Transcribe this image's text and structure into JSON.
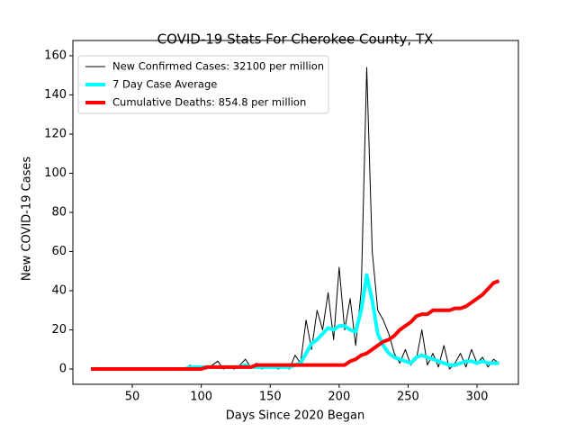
{
  "chart_data": {
    "type": "line",
    "title": "COVID-19 Stats For Cherokee County, TX",
    "xlabel": "Days Since 2020 Began",
    "ylabel": "New COVID-19 Cases",
    "legend": "upper left",
    "xlim": [
      6.9,
      330
    ],
    "ylim": [
      -7.8,
      167.8
    ],
    "xticks": [
      50,
      100,
      150,
      200,
      250,
      300
    ],
    "yticks": [
      0,
      20,
      40,
      60,
      80,
      100,
      120,
      140,
      160
    ],
    "x": [
      20,
      24,
      28,
      32,
      36,
      40,
      44,
      48,
      52,
      56,
      60,
      64,
      68,
      72,
      76,
      80,
      84,
      88,
      92,
      96,
      100,
      104,
      108,
      112,
      116,
      120,
      124,
      128,
      132,
      136,
      140,
      144,
      148,
      152,
      156,
      160,
      164,
      168,
      172,
      176,
      180,
      184,
      188,
      192,
      196,
      200,
      204,
      208,
      212,
      216,
      220,
      224,
      228,
      232,
      236,
      240,
      244,
      248,
      252,
      256,
      260,
      264,
      268,
      272,
      276,
      280,
      284,
      288,
      292,
      296,
      300,
      304,
      308,
      312,
      316
    ],
    "series": [
      {
        "name": "New Confirmed Cases: 32100 per million",
        "color": "#000000",
        "linewidth": 1,
        "values": [
          0,
          0,
          0,
          0,
          0,
          0,
          0,
          0,
          0,
          0,
          0,
          0,
          0,
          0,
          0,
          0,
          0,
          0,
          2,
          0,
          1,
          0,
          2,
          4,
          0,
          1,
          0,
          2,
          5,
          1,
          3,
          0,
          2,
          1,
          0,
          2,
          0,
          7,
          3,
          25,
          10,
          30,
          20,
          39,
          15,
          52,
          20,
          36,
          12,
          40,
          154,
          60,
          30,
          25,
          18,
          8,
          3,
          10,
          2,
          5,
          20,
          2,
          8,
          1,
          12,
          0,
          3,
          8,
          1,
          10,
          3,
          6,
          1,
          5,
          3
        ]
      },
      {
        "name": "7 Day Case Average",
        "color": "#00ffff",
        "linewidth": 4,
        "values": [
          0,
          0,
          0,
          0,
          0,
          0,
          0,
          0,
          0,
          0,
          0,
          0,
          0,
          0,
          0,
          0,
          0,
          0,
          1,
          1,
          1,
          1,
          1,
          1,
          1,
          1,
          1,
          1,
          2,
          1,
          1,
          1,
          1,
          1,
          1,
          1,
          1,
          2,
          3,
          8,
          13,
          15,
          18,
          21,
          20,
          22,
          22,
          20,
          19,
          30,
          48,
          35,
          18,
          12,
          8,
          6,
          5,
          4,
          3,
          6,
          7,
          6,
          5,
          4,
          3,
          2,
          2,
          3,
          4,
          4,
          3,
          4,
          3,
          3,
          3
        ]
      },
      {
        "name": "Cumulative Deaths: 854.8 per million",
        "color": "#ff0000",
        "linewidth": 4,
        "values": [
          0,
          0,
          0,
          0,
          0,
          0,
          0,
          0,
          0,
          0,
          0,
          0,
          0,
          0,
          0,
          0,
          0,
          0,
          0,
          0,
          0,
          1,
          1,
          1,
          1,
          1,
          1,
          1,
          1,
          1,
          2,
          2,
          2,
          2,
          2,
          2,
          2,
          2,
          2,
          2,
          2,
          2,
          2,
          2,
          2,
          2,
          2,
          4,
          5,
          7,
          8,
          10,
          12,
          14,
          15,
          17,
          20,
          22,
          24,
          27,
          28,
          28,
          30,
          30,
          30,
          30,
          31,
          31,
          32,
          34,
          36,
          38,
          41,
          44,
          45
        ]
      }
    ]
  }
}
